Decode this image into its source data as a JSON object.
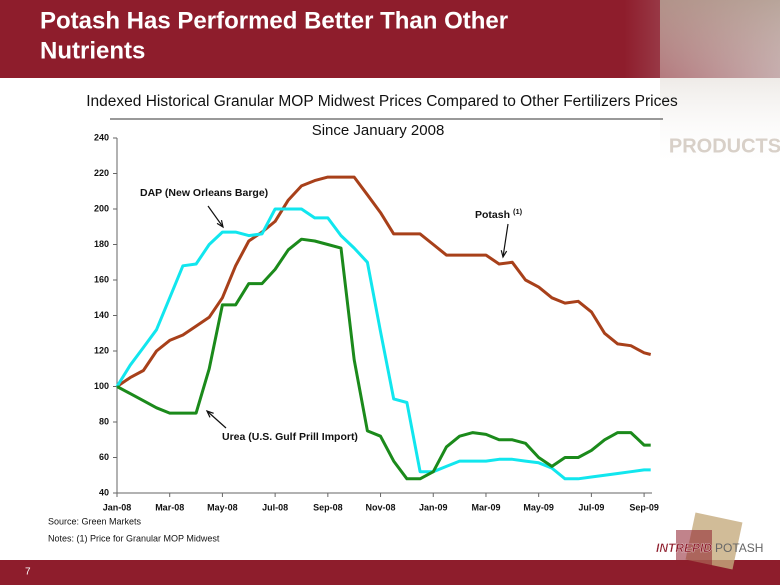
{
  "header": {
    "title_lines": [
      "Potash Has Performed Better Than Other",
      "Nutrients"
    ],
    "image_text": "PRODUCTS"
  },
  "chart_data": {
    "type": "line",
    "title": "Indexed Historical Granular MOP Midwest Prices Compared to Other Fertilizers Prices",
    "subtitle": "Since January 2008",
    "x": [
      0,
      0.5,
      1,
      1.5,
      2,
      2.5,
      3,
      3.5,
      4,
      4.5,
      5,
      5.5,
      6,
      6.5,
      7,
      7.5,
      8,
      8.5,
      9,
      9.5,
      10,
      10.5,
      11,
      11.5,
      12,
      12.5,
      13,
      13.5,
      14,
      14.5,
      15,
      15.5,
      16,
      16.5,
      17,
      17.5,
      18,
      18.5,
      19,
      19.5,
      20,
      20.25
    ],
    "xlim": [
      0,
      20.3
    ],
    "xticks": [
      {
        "value": 0,
        "label": "Jan-08"
      },
      {
        "value": 2,
        "label": "Mar-08"
      },
      {
        "value": 4,
        "label": "May-08"
      },
      {
        "value": 6,
        "label": "Jul-08"
      },
      {
        "value": 8,
        "label": "Sep-08"
      },
      {
        "value": 10,
        "label": "Nov-08"
      },
      {
        "value": 12,
        "label": "Jan-09"
      },
      {
        "value": 14,
        "label": "Mar-09"
      },
      {
        "value": 16,
        "label": "May-09"
      },
      {
        "value": 18,
        "label": "Jul-09"
      },
      {
        "value": 20,
        "label": "Sep-09"
      }
    ],
    "ylim": [
      40,
      240
    ],
    "yticks": [
      40,
      60,
      80,
      100,
      120,
      140,
      160,
      180,
      200,
      220,
      240
    ],
    "grid": false,
    "series": [
      {
        "name": "Potash",
        "name_note": "(1)",
        "color": "#a8401a",
        "values": [
          100,
          105,
          109,
          120,
          126,
          129,
          134,
          139,
          150,
          168,
          182,
          187,
          193,
          205,
          213,
          216,
          218,
          218,
          218,
          208,
          198,
          186,
          186,
          186,
          180,
          174,
          174,
          174,
          174,
          169,
          170,
          160,
          156,
          150,
          147,
          148,
          142,
          130,
          124,
          123,
          119,
          118
        ]
      },
      {
        "name": "DAP (New Orleans Barge)",
        "color": "#11e6ee",
        "values": [
          100,
          112,
          122,
          132,
          150,
          168,
          169,
          180,
          187,
          187,
          185,
          186,
          200,
          200,
          200,
          195,
          195,
          185,
          178,
          170,
          131,
          93,
          91,
          52,
          52,
          55,
          58,
          58,
          58,
          59,
          59,
          58,
          57,
          54,
          48,
          48,
          49,
          50,
          51,
          52,
          53,
          53
        ]
      },
      {
        "name": "Urea (U.S. Gulf Prill Import)",
        "color": "#1b8a1b",
        "values": [
          100,
          96,
          92,
          88,
          85,
          85,
          85,
          110,
          146,
          146,
          158,
          158,
          166,
          177,
          183,
          182,
          180,
          178,
          115,
          75,
          72,
          58,
          48,
          48,
          52,
          66,
          72,
          74,
          73,
          70,
          70,
          68,
          60,
          55,
          60,
          60,
          64,
          70,
          74,
          74,
          67,
          67
        ]
      }
    ]
  },
  "footer": {
    "source": "Source: Green Markets",
    "notes": "Notes: (1) Price for Granular MOP Midwest",
    "page_number": "7",
    "logo_left": "INTREPID",
    "logo_right": "POTASH"
  }
}
